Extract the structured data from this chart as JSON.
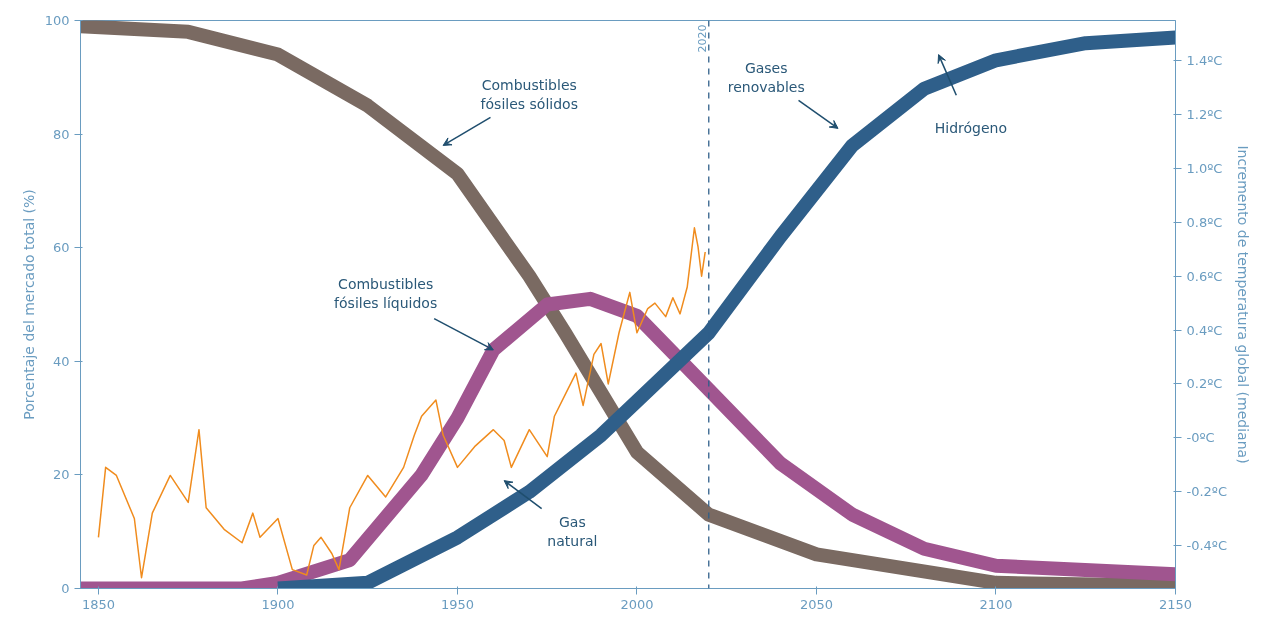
{
  "chart_data": {
    "type": "line",
    "xlim": [
      1845,
      2150
    ],
    "xticks": [
      1850,
      1900,
      1950,
      2000,
      2050,
      2100,
      2150
    ],
    "ylim": [
      0,
      100
    ],
    "yticks": [
      0,
      20,
      40,
      60,
      80,
      100
    ],
    "y2lim": [
      -0.56,
      1.55
    ],
    "y2ticks": [
      {
        "value": -0.4,
        "label": "-0.4ºC"
      },
      {
        "value": -0.2,
        "label": "-0.2ºC"
      },
      {
        "value": 0,
        "label": "-0ºC"
      },
      {
        "value": 0.2,
        "label": "0.2ºC"
      },
      {
        "value": 0.4,
        "label": "0.4ºC"
      },
      {
        "value": 0.6,
        "label": "0.6ºC"
      },
      {
        "value": 0.8,
        "label": "0.8ºC"
      },
      {
        "value": 1.0,
        "label": "1.0ºC"
      },
      {
        "value": 1.2,
        "label": "1.2ºC"
      },
      {
        "value": 1.4,
        "label": "1.4ºC"
      }
    ],
    "ylabel": "Porcentaje del mercado total (%)",
    "y2label": "Incremento de temperatura global (mediana)",
    "grid": false,
    "series": [
      {
        "color": "#7a6a62",
        "x": [
          1845,
          1875,
          1900,
          1925,
          1950,
          1970,
          1980,
          2000,
          2020,
          2050,
          2100,
          2150
        ],
        "values": [
          99,
          98,
          94,
          85,
          73,
          55,
          45,
          24,
          13,
          6,
          1,
          0.5
        ]
      },
      {
        "color": "#a0558f",
        "x": [
          1845,
          1890,
          1900,
          1920,
          1940,
          1950,
          1960,
          1975,
          1987,
          2000,
          2020,
          2040,
          2060,
          2080,
          2100,
          2150
        ],
        "values": [
          0,
          0,
          1,
          5,
          20,
          30,
          42,
          50,
          51,
          48,
          35,
          22,
          13,
          7,
          4,
          2.5
        ]
      },
      {
        "color": "#2f5f8a",
        "x": [
          1900,
          1925,
          1950,
          1970,
          1990,
          2000,
          2020,
          2040,
          2060,
          2080,
          2100,
          2125,
          2150
        ],
        "values": [
          0,
          1,
          9,
          17,
          27,
          33,
          45,
          62,
          78,
          88,
          93,
          96,
          97
        ]
      },
      {
        "color": "#f08c1e",
        "axis": "y2",
        "x": [
          1850,
          1852,
          1855,
          1860,
          1862,
          1865,
          1870,
          1875,
          1878,
          1880,
          1885,
          1890,
          1893,
          1895,
          1900,
          1904,
          1908,
          1910,
          1912,
          1915,
          1917,
          1920,
          1925,
          1930,
          1935,
          1938,
          1940,
          1944,
          1946,
          1950,
          1955,
          1960,
          1963,
          1965,
          1970,
          1975,
          1977,
          1980,
          1983,
          1985,
          1988,
          1990,
          1992,
          1995,
          1998,
          2000,
          2003,
          2005,
          2008,
          2010,
          2012,
          2014,
          2016,
          2017,
          2018,
          2019
        ],
        "values": [
          -0.37,
          -0.11,
          -0.14,
          -0.3,
          -0.52,
          -0.28,
          -0.14,
          -0.24,
          0.03,
          -0.26,
          -0.34,
          -0.39,
          -0.28,
          -0.37,
          -0.3,
          -0.49,
          -0.51,
          -0.4,
          -0.37,
          -0.43,
          -0.49,
          -0.26,
          -0.14,
          -0.22,
          -0.11,
          0.01,
          0.08,
          0.14,
          0.01,
          -0.11,
          -0.03,
          0.03,
          -0.01,
          -0.11,
          0.03,
          -0.07,
          0.08,
          0.16,
          0.24,
          0.12,
          0.31,
          0.35,
          0.2,
          0.39,
          0.54,
          0.39,
          0.48,
          0.5,
          0.45,
          0.52,
          0.46,
          0.56,
          0.78,
          0.71,
          0.6,
          0.69
        ]
      }
    ],
    "ref_lines": [
      {
        "axis": "x",
        "value": 2020,
        "label": "2020",
        "color": "#2f5f8a",
        "line_style": "dashed"
      }
    ],
    "annotations": [
      "Combustibles\nfósiles sólidos",
      {
        "text": "Combustibles\nfósiles líquidos",
        "x": 1960,
        "y": 42
      },
      "Gas\nnatural",
      "Gases\nrenovables",
      "Hidrógeno"
    ]
  }
}
